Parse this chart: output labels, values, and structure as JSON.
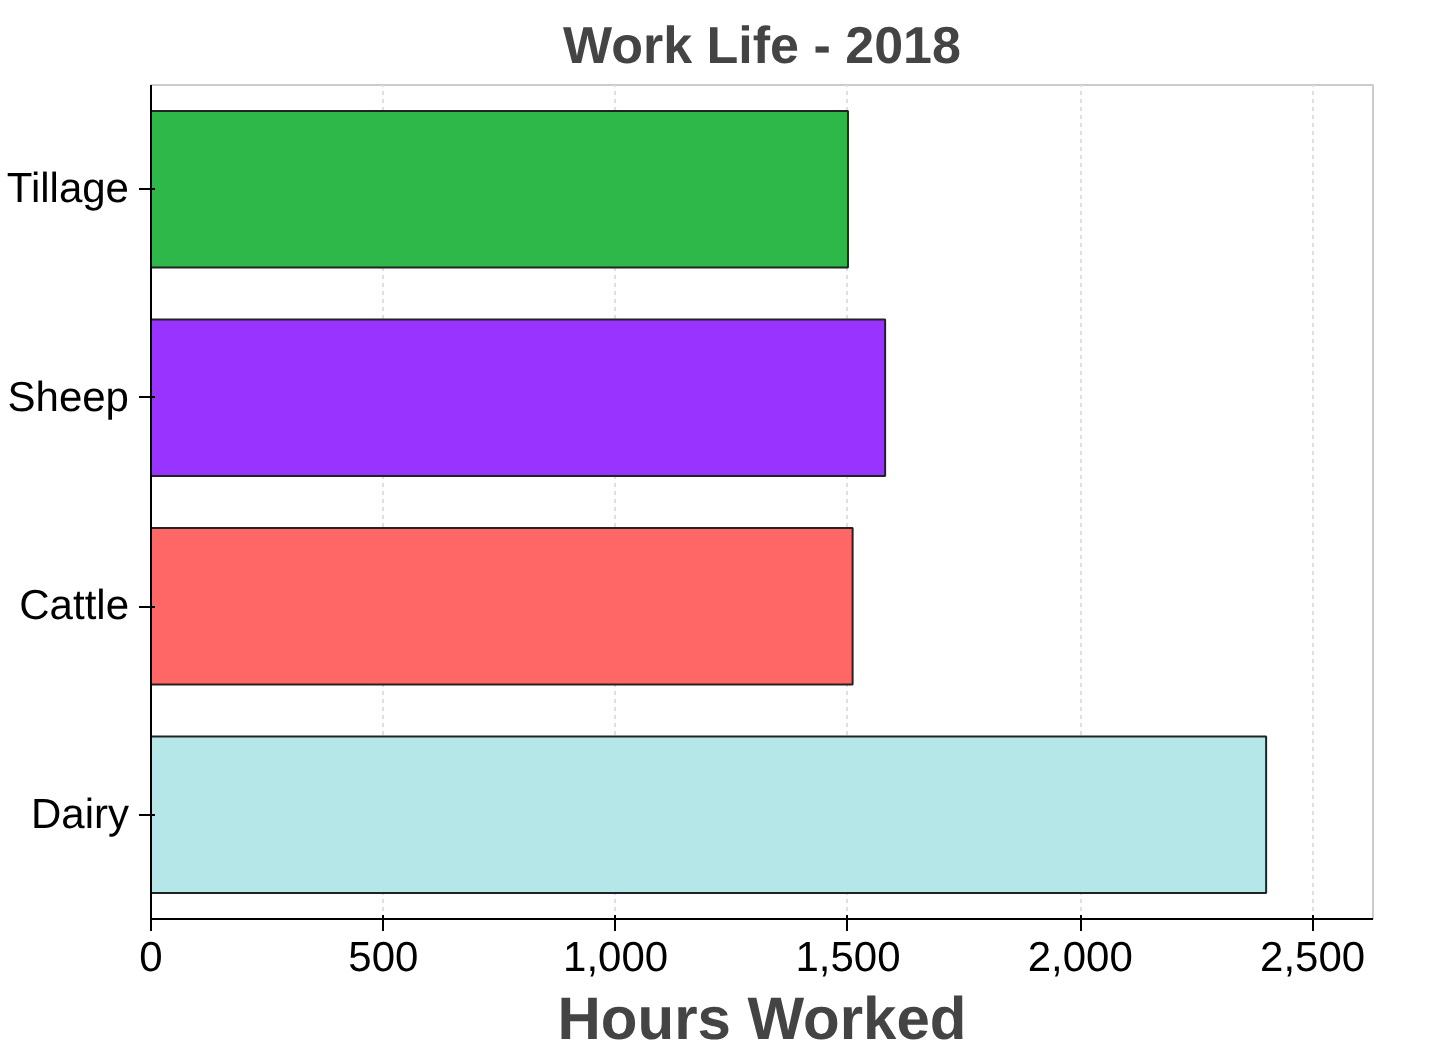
{
  "chart_data": {
    "type": "bar",
    "orientation": "horizontal",
    "title": "Work Life - 2018",
    "xlabel": "Hours Worked",
    "categories": [
      "Tillage",
      "Sheep",
      "Cattle",
      "Dairy"
    ],
    "values": [
      1500,
      1580,
      1510,
      2400
    ],
    "colors": [
      "#2eb84a",
      "#9933ff",
      "#ff6666",
      "#b5e6e8"
    ],
    "xlim": [
      0,
      2630
    ],
    "xticks": [
      0,
      500,
      {
        "value": 1000,
        "label": "1,000"
      },
      {
        "value": 1500,
        "label": "1,500"
      },
      {
        "value": 2000,
        "label": "2,000"
      },
      {
        "value": 2500,
        "label": "2,500"
      }
    ],
    "grid": "x"
  }
}
